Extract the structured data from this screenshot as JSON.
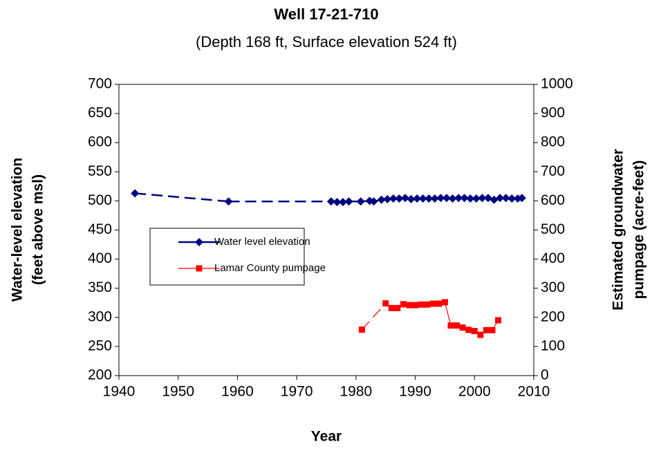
{
  "chart_data": {
    "type": "line",
    "title": "Well 17-21-710",
    "subtitle": "(Depth 168 ft, Surface elevation 524 ft)",
    "xlabel": "Year",
    "ylabel": [
      "Water-level elevation",
      "(feet above msl)"
    ],
    "y2label": [
      "Estimated groundwater",
      "pumpage (acre-feet)"
    ],
    "xlim": [
      1940,
      2010
    ],
    "xticks": [
      1940,
      1950,
      1960,
      1970,
      1980,
      1990,
      2000,
      2010
    ],
    "ylim": [
      200,
      700
    ],
    "yticks": [
      200,
      250,
      300,
      350,
      400,
      450,
      500,
      550,
      600,
      650,
      700
    ],
    "y2lim": [
      0,
      1000
    ],
    "y2ticks": [
      0,
      100,
      200,
      300,
      400,
      500,
      600,
      700,
      800,
      900,
      1000
    ],
    "grid": false,
    "series": [
      {
        "name": "Water level elevation",
        "color": "#000080",
        "marker": "diamond",
        "x": [
          1942.7,
          1958.5,
          1975.8,
          1976.8,
          1977.8,
          1978.8,
          1980.8,
          1982.3,
          1983.0,
          1984.3,
          1985.3,
          1986.3,
          1987.3,
          1988.3,
          1989.3,
          1990.3,
          1991.3,
          1992.3,
          1993.3,
          1994.3,
          1995.3,
          1996.3,
          1997.3,
          1998.3,
          1999.3,
          2000.3,
          2001.3,
          2002.3,
          2003.3,
          2004.3,
          2005.3,
          2006.3,
          2007.3,
          2008.0
        ],
        "values": [
          513,
          499,
          499,
          498,
          498,
          499,
          499,
          500,
          499,
          502,
          503,
          504,
          504,
          505,
          503,
          504,
          504,
          504,
          504,
          505,
          505,
          504,
          505,
          505,
          504,
          504,
          505,
          505,
          502,
          505,
          505,
          504,
          504,
          505
        ]
      },
      {
        "name": "Lamar County pumpage",
        "color": "#ff0000",
        "marker": "square",
        "axis": "y2",
        "x": [
          1981,
          1985,
          1986,
          1987,
          1988,
          1989,
          1990,
          1991,
          1992,
          1993,
          1994,
          1995,
          1996,
          1997,
          1998,
          1999,
          2000,
          2001,
          2002,
          2003,
          2004
        ],
        "values": [
          158,
          248,
          232,
          232,
          245,
          242,
          242,
          244,
          244,
          247,
          247,
          252,
          172,
          172,
          165,
          157,
          153,
          140,
          156,
          156,
          190
        ]
      }
    ]
  }
}
